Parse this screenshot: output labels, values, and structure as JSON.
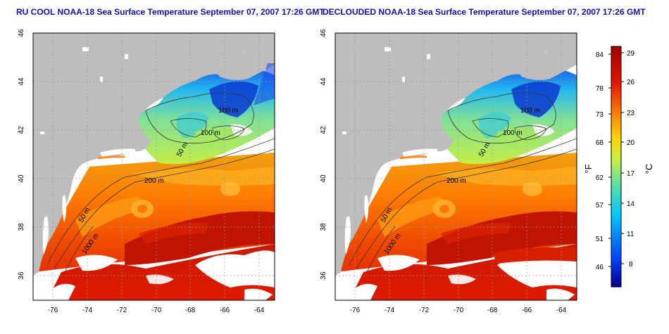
{
  "panels": [
    {
      "title": "RU COOL NOAA-18 Sea Surface Temperature September 07, 2007 17:26 GMT",
      "contour_labels": [
        "100 m",
        "100 m",
        "50 m",
        "200 m",
        "50 m",
        "1000 m"
      ]
    },
    {
      "title": "DECLOUDED NOAA-18 Sea Surface Temperature September 07, 2007 17:26 GMT",
      "contour_labels": [
        "100 m",
        "100 m",
        "50 m",
        "200 m",
        "50 m",
        "1000 m"
      ]
    }
  ],
  "axes": {
    "x_ticks": [
      "-76",
      "-74",
      "-72",
      "-70",
      "-68",
      "-66",
      "-64"
    ],
    "y_ticks": [
      "36",
      "38",
      "40",
      "42",
      "44",
      "46"
    ],
    "x_range": [
      -77.2,
      -63.1
    ],
    "y_range": [
      35,
      46
    ]
  },
  "colorbar": {
    "fahrenheit_ticks": [
      "84",
      "78",
      "73",
      "68",
      "62",
      "57",
      "51",
      "46"
    ],
    "celsius_ticks": [
      "29",
      "26",
      "23",
      "20",
      "17",
      "14",
      "11",
      "8"
    ],
    "fahrenheit_label": "°F",
    "celsius_label": "°C",
    "colors": [
      "#06008a",
      "#0044ff",
      "#00c8ff",
      "#60e0a0",
      "#c8ef40",
      "#ffd400",
      "#ff8000",
      "#e31400",
      "#a00000"
    ]
  },
  "colors": {
    "land": "#bdbdbd",
    "coast": "#ffffff",
    "title": "#1010b0"
  }
}
